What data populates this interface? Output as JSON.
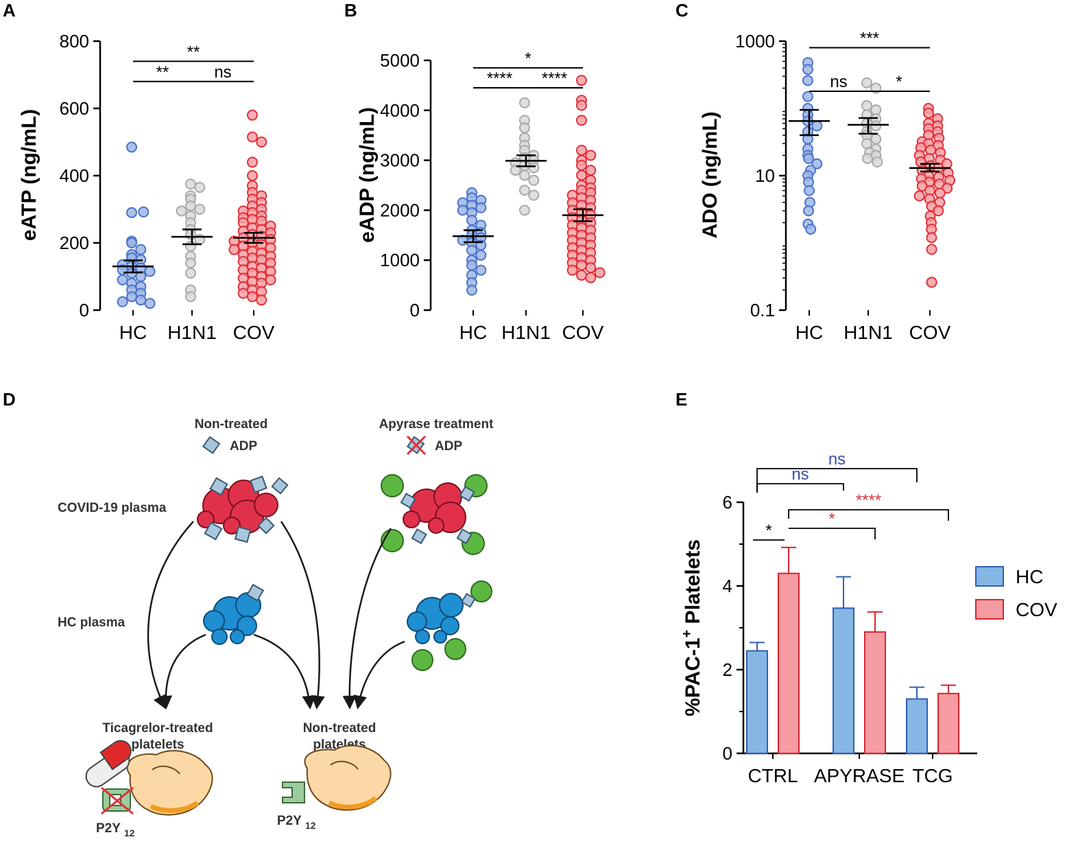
{
  "panels": {
    "A": "A",
    "B": "B",
    "C": "C",
    "D": "D",
    "E": "E"
  },
  "colors": {
    "hc": "#4a74c9",
    "hc_fill": "#9fb6e6",
    "h1n1": "#a9a9a9",
    "h1n1_fill": "#d9d9d9",
    "cov": "#e0313a",
    "cov_fill": "#f4a0a4",
    "bar_hc": "#86b6e4",
    "bar_hc_edge": "#2f5fb3",
    "bar_cov": "#f49ca2",
    "bar_cov_edge": "#d7252f",
    "sig_blue": "#3b4fb0",
    "sig_red": "#e0313a"
  },
  "chart_data": [
    {
      "id": "A",
      "type": "scatter",
      "ylabel": "eATP (ng/mL)",
      "scale": "linear",
      "ylim": [
        0,
        800
      ],
      "yticks": [
        "0",
        "200",
        "400",
        "600",
        "800"
      ],
      "categories": [
        "HC",
        "H1N1",
        "COV"
      ],
      "groups": [
        {
          "name": "HC",
          "color": "hc",
          "mean": 130,
          "sem_low": 112,
          "sem_high": 148,
          "values": [
            485,
            290,
            292,
            205,
            200,
            180,
            165,
            155,
            150,
            135,
            130,
            125,
            120,
            115,
            110,
            100,
            90,
            80,
            70,
            60,
            50,
            40,
            30,
            25,
            20
          ]
        },
        {
          "name": "H1N1",
          "color": "h1n1",
          "mean": 218,
          "sem_low": 196,
          "sem_high": 240,
          "values": [
            375,
            365,
            340,
            330,
            310,
            300,
            295,
            280,
            260,
            240,
            225,
            210,
            190,
            160,
            140,
            110,
            60,
            40
          ]
        },
        {
          "name": "COV",
          "color": "cov",
          "mean": 215,
          "sem_low": 200,
          "sem_high": 230,
          "values": [
            580,
            515,
            500,
            440,
            400,
            370,
            350,
            340,
            330,
            320,
            310,
            300,
            295,
            290,
            280,
            275,
            270,
            265,
            260,
            250,
            245,
            240,
            235,
            230,
            225,
            220,
            215,
            210,
            205,
            200,
            195,
            190,
            185,
            180,
            175,
            170,
            165,
            160,
            155,
            150,
            145,
            140,
            130,
            125,
            120,
            115,
            110,
            100,
            95,
            90,
            85,
            80,
            70,
            60,
            55,
            50,
            40,
            30
          ]
        }
      ],
      "comparisons": [
        {
          "from": 0,
          "to": 1,
          "y": 680,
          "label": "**"
        },
        {
          "from": 1,
          "to": 2,
          "y": 680,
          "label": "ns"
        },
        {
          "from": 0,
          "to": 2,
          "y": 740,
          "label": "**"
        }
      ]
    },
    {
      "id": "B",
      "type": "scatter",
      "ylabel": "eADP (ng/mL)",
      "scale": "linear",
      "ylim": [
        0,
        5000
      ],
      "yticks": [
        "0",
        "1000",
        "2000",
        "3000",
        "4000",
        "5000"
      ],
      "categories": [
        "HC",
        "H1N1",
        "COV"
      ],
      "groups": [
        {
          "name": "HC",
          "color": "hc",
          "mean": 1480,
          "sem_low": 1360,
          "sem_high": 1600,
          "values": [
            2350,
            2250,
            2200,
            2150,
            2100,
            2050,
            2000,
            1950,
            1800,
            1700,
            1600,
            1550,
            1500,
            1450,
            1400,
            1350,
            1300,
            1200,
            1100,
            1000,
            900,
            800,
            700,
            550,
            400
          ]
        },
        {
          "name": "H1N1",
          "color": "h1n1",
          "mean": 2990,
          "sem_low": 2880,
          "sem_high": 3100,
          "values": [
            4150,
            3800,
            3650,
            3450,
            3300,
            3200,
            3100,
            3050,
            3000,
            2950,
            2900,
            2850,
            2800,
            2700,
            2600,
            2400,
            2300,
            2000
          ]
        },
        {
          "name": "COV",
          "color": "cov",
          "mean": 1900,
          "sem_low": 1780,
          "sem_high": 2020,
          "values": [
            4600,
            4200,
            4100,
            3800,
            3200,
            3100,
            3000,
            2900,
            2800,
            2700,
            2600,
            2500,
            2450,
            2400,
            2350,
            2300,
            2250,
            2200,
            2150,
            2100,
            2050,
            2000,
            1950,
            1900,
            1850,
            1800,
            1750,
            1700,
            1650,
            1600,
            1550,
            1500,
            1450,
            1400,
            1350,
            1300,
            1250,
            1200,
            1150,
            1100,
            1050,
            1000,
            950,
            900,
            850,
            800,
            750,
            700,
            650
          ]
        }
      ],
      "comparisons": [
        {
          "from": 0,
          "to": 1,
          "y": 4450,
          "label": "****"
        },
        {
          "from": 1,
          "to": 2,
          "y": 4450,
          "label": "****"
        },
        {
          "from": 0,
          "to": 2,
          "y": 4850,
          "label": "*"
        }
      ]
    },
    {
      "id": "C",
      "type": "scatter",
      "ylabel": "ADO (ng/mL)",
      "scale": "log",
      "ylim": [
        0.1,
        1000
      ],
      "yticks": [
        "0.1",
        "10",
        "1000"
      ],
      "ytick_values": [
        0.1,
        10,
        1000
      ],
      "categories": [
        "HC",
        "H1N1",
        "COV"
      ],
      "groups": [
        {
          "name": "HC",
          "color": "hc",
          "mean": 65,
          "sem_low": 40,
          "sem_high": 95,
          "values": [
            480,
            380,
            260,
            150,
            100,
            80,
            65,
            55,
            45,
            35,
            25,
            20,
            18,
            15,
            12,
            10,
            8,
            6,
            4,
            3,
            1.9,
            1.6
          ]
        },
        {
          "name": "H1N1",
          "color": "h1n1",
          "mean": 57,
          "sem_low": 42,
          "sem_high": 72,
          "values": [
            240,
            200,
            110,
            95,
            80,
            70,
            60,
            55,
            45,
            40,
            35,
            30,
            25,
            22,
            20,
            18,
            16
          ]
        },
        {
          "name": "COV",
          "color": "cov",
          "mean": 13,
          "sem_low": 11.5,
          "sem_high": 15,
          "values": [
            100,
            85,
            70,
            60,
            55,
            50,
            45,
            40,
            36,
            32,
            30,
            28,
            26,
            24,
            22,
            20,
            18,
            17,
            16,
            15,
            14,
            13,
            12,
            11,
            10,
            9.5,
            9,
            8.5,
            8,
            7.5,
            7,
            6.5,
            6,
            5.5,
            5,
            4.5,
            4,
            3.5,
            3,
            2.5,
            2,
            1.6,
            1.2,
            0.8,
            0.26
          ]
        }
      ],
      "comparisons": [
        {
          "from": 0,
          "to": 1,
          "y": 180,
          "label": "ns"
        },
        {
          "from": 1,
          "to": 2,
          "y": 180,
          "label": "*"
        },
        {
          "from": 0,
          "to": 2,
          "y": 800,
          "label": "***"
        }
      ]
    },
    {
      "id": "E",
      "type": "bar",
      "ylabel": "%PAC-1",
      "ylabel_sup": "+",
      "ylabel_tail": " Platelets",
      "ylim": [
        0,
        6
      ],
      "yticks": [
        "0",
        "2",
        "4",
        "6"
      ],
      "categories": [
        "CTRL",
        "APYRASE",
        "TCG"
      ],
      "series": [
        {
          "name": "HC",
          "values": [
            2.45,
            3.47,
            1.3
          ],
          "errors": [
            0.2,
            0.75,
            0.28
          ]
        },
        {
          "name": "COV",
          "values": [
            4.3,
            2.9,
            1.43
          ],
          "errors": [
            0.62,
            0.48,
            0.2
          ]
        }
      ],
      "legend": [
        "HC",
        "COV"
      ],
      "comparisons": [
        {
          "label": "*",
          "color": "black"
        },
        {
          "label": "*",
          "color": "red"
        },
        {
          "label": "****",
          "color": "red"
        },
        {
          "label": "ns",
          "color": "blue"
        },
        {
          "label": "ns",
          "color": "blue"
        }
      ]
    }
  ],
  "diagram": {
    "non_treated": "Non-treated",
    "adp": "ADP",
    "apyrase": "Apyrase treatment",
    "covid_plasma": "COVID-19 plasma",
    "hc_plasma": "HC plasma",
    "ticagrelor_1": "Ticagrelor-treated",
    "ticagrelor_2": "platelets",
    "nontreated_1": "Non-treated",
    "nontreated_2": "platelets",
    "receptor": "P2Y",
    "receptor_sub": "12"
  }
}
